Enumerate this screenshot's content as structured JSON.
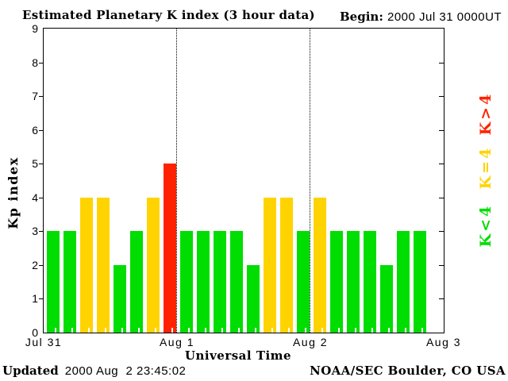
{
  "title": "Estimated Planetary K index (3 hour data)",
  "begin_label": "Begin:",
  "begin_value": "2000 Jul 31 0000UT",
  "footer": {
    "updated_label": "Updated",
    "updated_value": "2000 Aug  2 23:45:02",
    "credit": "NOAA/SEC Boulder, CO USA"
  },
  "chart_data": {
    "type": "bar",
    "title": "Estimated Planetary K index (3 hour data)",
    "begin": "2000 Jul 31 0000UT",
    "xlabel": "Universal Time",
    "ylabel": "Kp index",
    "ylim": [
      0,
      9
    ],
    "yticks": [
      0,
      1,
      2,
      3,
      4,
      5,
      6,
      7,
      8,
      9
    ],
    "xticks": [
      "Jul 31",
      "Aug 1",
      "Aug 2",
      "Aug 3"
    ],
    "hours_per_bar": 3,
    "series": [
      {
        "name": "Jul 31",
        "values": [
          3,
          3,
          4,
          4,
          2,
          3,
          4,
          5
        ]
      },
      {
        "name": "Aug 1",
        "values": [
          3,
          3,
          3,
          3,
          2,
          4,
          4,
          3
        ]
      },
      {
        "name": "Aug 2",
        "values": [
          4,
          3,
          3,
          3,
          2,
          3,
          3
        ]
      }
    ],
    "color_rule": "green K<4, yellow K=4, red K>4",
    "colors": {
      "low": "#00DD00",
      "mid": "#FFD300",
      "high": "#FF2200"
    },
    "legend": [
      {
        "label": "K>4",
        "color": "#FF2200"
      },
      {
        "label": "K=4",
        "color": "#FFD300"
      },
      {
        "label": "K<4",
        "color": "#00DD00"
      }
    ],
    "grid": "dotted vertical lines at day boundaries",
    "legend_position": "right, rotated 90deg"
  }
}
